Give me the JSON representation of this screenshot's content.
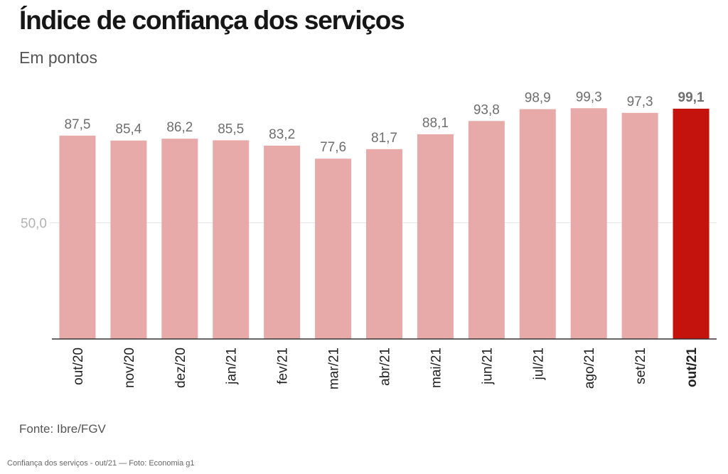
{
  "header": {
    "title": "Índice de confiança dos serviços",
    "subtitle": "Em pontos"
  },
  "footer": {
    "source": "Fonte: Ibre/FGV",
    "caption": "Confiança dos serviços - out/21 — Foto: Economia g1"
  },
  "colors": {
    "bar": "#e8aaa8",
    "highlight_bar": "#c4130c",
    "value_label": "#6e6e6e",
    "highlight_label": "#6e6e6e",
    "axis": "#333333",
    "gridline": "#e6e6e6",
    "tick_label": "#b3b3b3"
  },
  "chart_data": {
    "type": "bar",
    "title": "Índice de confiança dos serviços",
    "subtitle": "Em pontos",
    "categories": [
      "out/20",
      "nov/20",
      "dez/20",
      "jan/21",
      "fev/21",
      "mar/21",
      "abr/21",
      "mai/21",
      "jun/21",
      "jul/21",
      "ago/21",
      "set/21",
      "out/21"
    ],
    "values": [
      87.5,
      85.4,
      86.2,
      85.5,
      83.2,
      77.6,
      81.7,
      88.1,
      93.8,
      98.9,
      99.3,
      97.3,
      99.1
    ],
    "value_labels": [
      "87,5",
      "85,4",
      "86,2",
      "85,5",
      "83,2",
      "77,6",
      "81,7",
      "88,1",
      "93,8",
      "98,9",
      "99,3",
      "97,3",
      "99,1"
    ],
    "highlight_index": 12,
    "y_ticks": [
      50
    ],
    "y_tick_labels": [
      "50,0"
    ],
    "ylim": [
      0,
      100
    ],
    "grid": true,
    "legend": "none",
    "xlabel": "",
    "ylabel": ""
  }
}
